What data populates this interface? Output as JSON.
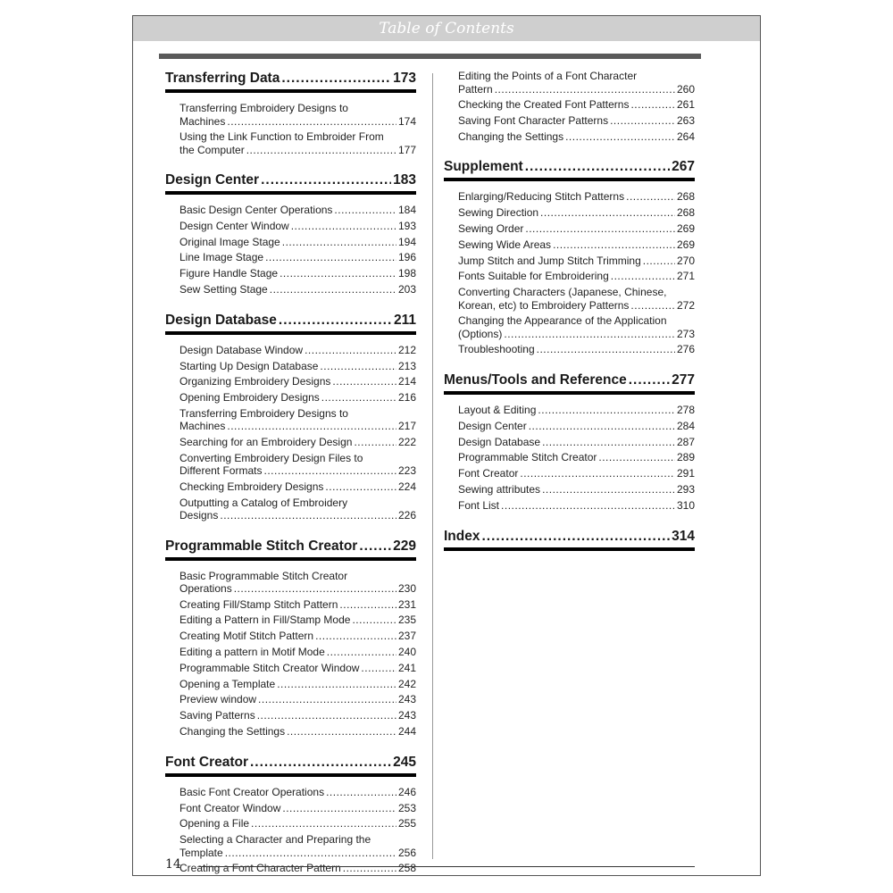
{
  "header": {
    "title": "Table of Contents"
  },
  "columns": [
    [
      {
        "title": "Transferring Data",
        "page": "173",
        "entries": [
          {
            "lines": [
              "Transferring Embroidery Designs to",
              "Machines"
            ],
            "page": "174"
          },
          {
            "lines": [
              "Using the Link Function to Embroider From",
              "the Computer"
            ],
            "page": "177"
          }
        ]
      },
      {
        "title": "Design Center",
        "page": "183",
        "entries": [
          {
            "lines": [
              "Basic Design Center Operations"
            ],
            "page": "184"
          },
          {
            "lines": [
              "Design Center Window"
            ],
            "page": "193"
          },
          {
            "lines": [
              "Original Image Stage"
            ],
            "page": "194"
          },
          {
            "lines": [
              "Line Image Stage"
            ],
            "page": "196"
          },
          {
            "lines": [
              "Figure Handle Stage"
            ],
            "page": "198"
          },
          {
            "lines": [
              "Sew Setting Stage"
            ],
            "page": "203"
          }
        ]
      },
      {
        "title": "Design Database",
        "page": "211",
        "entries": [
          {
            "lines": [
              "Design Database Window"
            ],
            "page": "212"
          },
          {
            "lines": [
              "Starting Up Design Database"
            ],
            "page": "213"
          },
          {
            "lines": [
              "Organizing Embroidery Designs"
            ],
            "page": "214"
          },
          {
            "lines": [
              "Opening Embroidery Designs"
            ],
            "page": "216"
          },
          {
            "lines": [
              "Transferring Embroidery Designs to",
              "Machines"
            ],
            "page": "217"
          },
          {
            "lines": [
              "Searching for an Embroidery Design"
            ],
            "page": "222"
          },
          {
            "lines": [
              "Converting Embroidery Design Files to",
              "Different Formats"
            ],
            "page": "223"
          },
          {
            "lines": [
              "Checking Embroidery Designs"
            ],
            "page": "224"
          },
          {
            "lines": [
              "Outputting a Catalog of Embroidery",
              "Designs"
            ],
            "page": "226"
          }
        ]
      },
      {
        "title": "Programmable Stitch Creator",
        "page": "229",
        "entries": [
          {
            "lines": [
              "Basic Programmable Stitch Creator",
              "Operations"
            ],
            "page": "230"
          },
          {
            "lines": [
              "Creating Fill/Stamp Stitch Pattern"
            ],
            "page": "231"
          },
          {
            "lines": [
              "Editing a Pattern in Fill/Stamp Mode"
            ],
            "page": "235"
          },
          {
            "lines": [
              "Creating Motif Stitch Pattern"
            ],
            "page": "237"
          },
          {
            "lines": [
              "Editing a pattern in Motif Mode"
            ],
            "page": "240"
          },
          {
            "lines": [
              "Programmable Stitch Creator Window"
            ],
            "page": "241"
          },
          {
            "lines": [
              "Opening a Template"
            ],
            "page": "242"
          },
          {
            "lines": [
              "Preview window"
            ],
            "page": "243"
          },
          {
            "lines": [
              "Saving Patterns"
            ],
            "page": "243"
          },
          {
            "lines": [
              "Changing the Settings"
            ],
            "page": "244"
          }
        ]
      },
      {
        "title": "Font Creator",
        "page": "245",
        "entries": [
          {
            "lines": [
              "Basic Font Creator Operations"
            ],
            "page": "246"
          },
          {
            "lines": [
              "Font Creator Window"
            ],
            "page": "253"
          },
          {
            "lines": [
              "Opening a File"
            ],
            "page": "255"
          },
          {
            "lines": [
              "Selecting a Character and Preparing the",
              "Template"
            ],
            "page": "256"
          },
          {
            "lines": [
              "Creating a Font Character Pattern"
            ],
            "page": "258"
          }
        ]
      }
    ],
    [
      {
        "title": "",
        "page": "",
        "entries": [
          {
            "lines": [
              "Editing the Points of a Font Character",
              "Pattern"
            ],
            "page": "260"
          },
          {
            "lines": [
              "Checking the Created Font Patterns"
            ],
            "page": "261"
          },
          {
            "lines": [
              "Saving Font Character Patterns"
            ],
            "page": "263"
          },
          {
            "lines": [
              "Changing the Settings"
            ],
            "page": "264"
          }
        ]
      },
      {
        "title": "Supplement",
        "page": "267",
        "entries": [
          {
            "lines": [
              "Enlarging/Reducing Stitch Patterns"
            ],
            "page": "268"
          },
          {
            "lines": [
              "Sewing Direction"
            ],
            "page": "268"
          },
          {
            "lines": [
              "Sewing Order"
            ],
            "page": "269"
          },
          {
            "lines": [
              "Sewing Wide Areas"
            ],
            "page": "269"
          },
          {
            "lines": [
              "Jump Stitch and Jump Stitch Trimming"
            ],
            "page": "270"
          },
          {
            "lines": [
              "Fonts Suitable for Embroidering"
            ],
            "page": "271"
          },
          {
            "lines": [
              "Converting Characters (Japanese, Chinese,",
              "Korean, etc) to Embroidery Patterns"
            ],
            "page": "272"
          },
          {
            "lines": [
              "Changing the Appearance of the Application",
              "(Options)"
            ],
            "page": "273"
          },
          {
            "lines": [
              "Troubleshooting"
            ],
            "page": "276"
          }
        ]
      },
      {
        "title": "Menus/Tools and Reference",
        "page": "277",
        "entries": [
          {
            "lines": [
              "Layout & Editing"
            ],
            "page": "278"
          },
          {
            "lines": [
              "Design Center"
            ],
            "page": "284"
          },
          {
            "lines": [
              "Design Database"
            ],
            "page": "287"
          },
          {
            "lines": [
              "Programmable Stitch Creator"
            ],
            "page": "289"
          },
          {
            "lines": [
              "Font Creator"
            ],
            "page": "291"
          },
          {
            "lines": [
              "Sewing attributes"
            ],
            "page": "293"
          },
          {
            "lines": [
              "Font List"
            ],
            "page": "310"
          }
        ]
      },
      {
        "title": "Index",
        "page": "314",
        "entries": []
      }
    ]
  ],
  "footer": {
    "page_number": "14"
  }
}
